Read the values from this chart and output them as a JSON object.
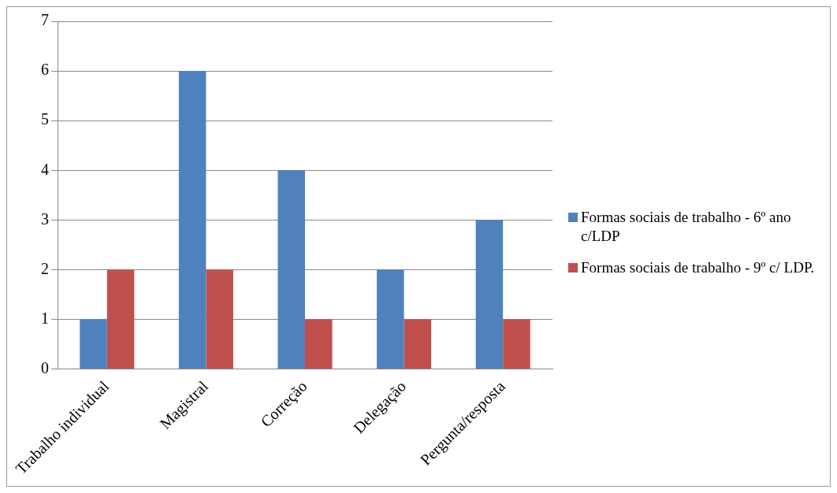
{
  "chart_data": {
    "type": "bar",
    "categories": [
      "Trabalho individual",
      "Magistral",
      "Correção",
      "Delegação",
      "Pergunta/resposta"
    ],
    "series": [
      {
        "name": "Formas sociais de trabalho - 6º ano c/LDP",
        "color": "#4f81bd",
        "values": [
          1,
          6,
          4,
          2,
          3
        ]
      },
      {
        "name": "Formas sociais de trabalho - 9º c/ LDP.",
        "color": "#c0504d",
        "values": [
          2,
          2,
          1,
          1,
          1
        ]
      }
    ],
    "ylim": [
      0,
      7
    ],
    "yticks": [
      0,
      1,
      2,
      3,
      4,
      5,
      6,
      7
    ],
    "grid": "y",
    "legend": "right"
  }
}
